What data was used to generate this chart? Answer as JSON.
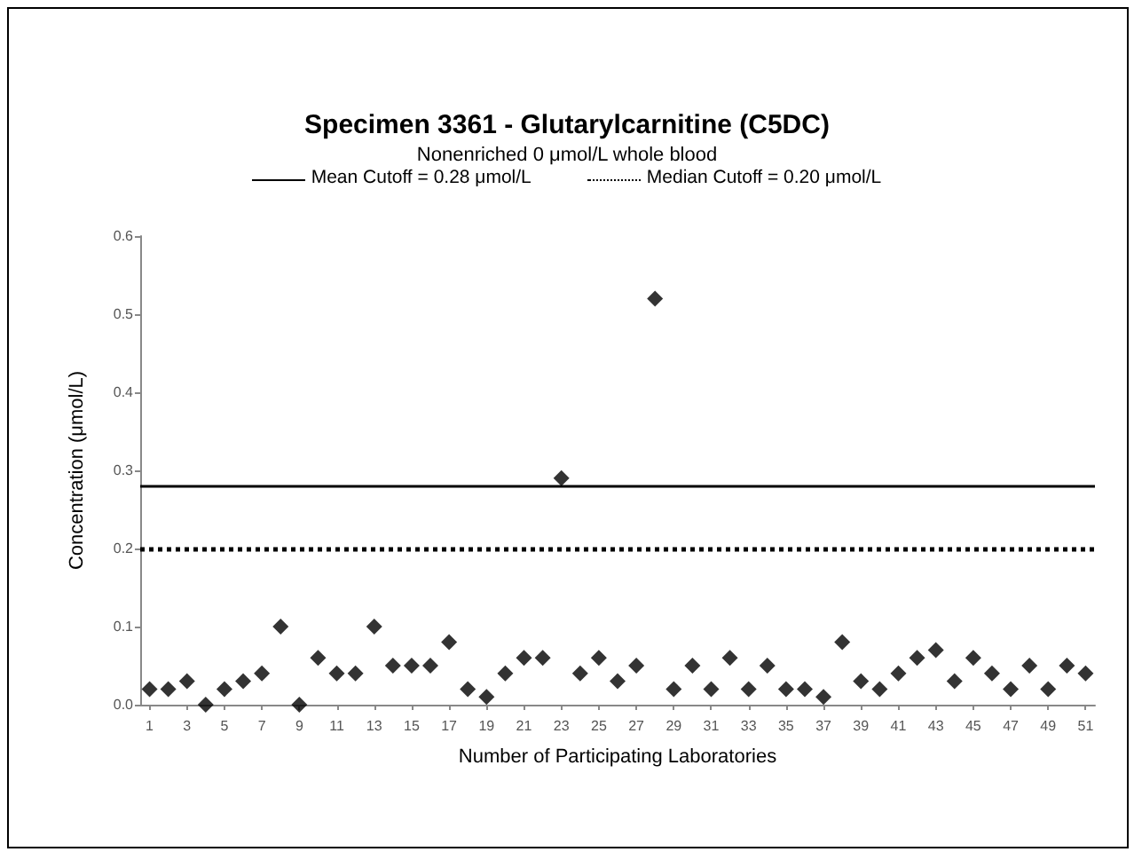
{
  "chart_data": {
    "type": "scatter",
    "title": "Specimen 3361 - Glutarylcarnitine (C5DC)",
    "subtitle": "Nonenriched 0 μmol/L whole blood",
    "xlabel": "Number of Participating Laboratories",
    "ylabel": "Concentration (μmol/L)",
    "x": [
      1,
      2,
      3,
      4,
      5,
      6,
      7,
      8,
      9,
      10,
      11,
      12,
      13,
      14,
      15,
      16,
      17,
      18,
      19,
      20,
      21,
      22,
      23,
      24,
      25,
      26,
      27,
      28,
      29,
      30,
      31,
      32,
      33,
      34,
      35,
      36,
      37,
      38,
      39,
      40,
      41,
      42,
      43,
      44,
      45,
      46,
      47,
      48,
      49,
      50,
      51
    ],
    "values": [
      0.02,
      0.02,
      0.03,
      0,
      0.02,
      0.03,
      0.04,
      0.1,
      0,
      0.06,
      0.04,
      0.04,
      0.1,
      0.05,
      0.05,
      0.05,
      0.08,
      0.02,
      0.01,
      0.04,
      0.06,
      0.06,
      0.29,
      0.04,
      0.06,
      0.03,
      0.05,
      0.52,
      0.02,
      0.05,
      0.02,
      0.06,
      0.02,
      0.05,
      0.02,
      0.02,
      0.01,
      0.08,
      0.03,
      0.02,
      0.04,
      0.06,
      0.07,
      0.03,
      0.06,
      0.04,
      0.02,
      0.05,
      0.02,
      0.05,
      0.04
    ],
    "color": "#000000",
    "marker": "diamond",
    "xlim": [
      0.5,
      51.5
    ],
    "xticks": [
      1,
      3,
      5,
      7,
      9,
      11,
      13,
      15,
      17,
      19,
      21,
      23,
      25,
      27,
      29,
      31,
      33,
      35,
      37,
      39,
      41,
      43,
      45,
      47,
      49,
      51
    ],
    "ylim": [
      0,
      0.6
    ],
    "yticks": [
      {
        "value": 0,
        "label": "0.0"
      },
      0.1,
      0.2,
      0.3,
      0.4,
      0.5,
      0.6
    ],
    "ref_lines": [
      {
        "axis": "y",
        "value": 0.28,
        "label": "Mean Cutoff = 0.28 μmol/L",
        "line_style": "solid",
        "color": "#000000"
      },
      {
        "axis": "y",
        "value": 0.2,
        "label": "Median Cutoff = 0.20 μmol/L",
        "line_style": "dotted",
        "color": "#000000"
      }
    ],
    "legend": "top",
    "grid": false
  }
}
